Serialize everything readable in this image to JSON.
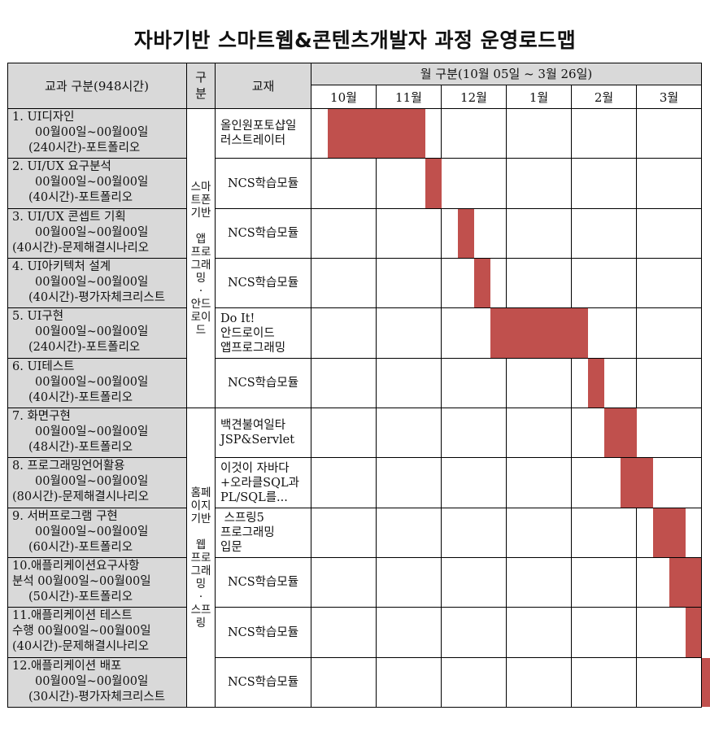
{
  "title": "자바기반 스마트웹&콘텐츠개발자 과정 운영로드맵",
  "header": {
    "course_col": "교과 구분(948시간)",
    "category_col": "구\n분",
    "material_col": "교재",
    "months_title": "월 구분(10월 05일 ~ 3월 26일)",
    "months": [
      "10월",
      "11월",
      "12월",
      "1월",
      "2월",
      "3월"
    ]
  },
  "categories": [
    {
      "label": "스마\n트폰\n기반\n\n앱\n프로\n그래\n밍\n·\n안드\n로이\n드"
    },
    {
      "label": "홈페\n이지\n기반\n\n웹\n프로\n그래\n밍\n·\n스프\n링"
    }
  ],
  "rows": [
    {
      "line1": "1. UI디자인",
      "line2": "00월00일~00월00일",
      "line3": "(240시간)-포트폴리오",
      "material": "올인원포토샵일\n러스트레이터",
      "start": 0,
      "end": 1.5
    },
    {
      "line1": "2. UI/UX 요구분석",
      "line2": "00월00일~00월00일",
      "line3": "(40시간)-포트폴리오",
      "material": "NCS학습모듈",
      "start": 1.5,
      "end": 1.75
    },
    {
      "line1": "3. UI/UX 콘셉트 기획",
      "line2": "00월00일~00월00일",
      "line3": "(40시간)-문제해결시나리오",
      "material": "NCS학습모듈",
      "start": 2.0,
      "end": 2.25
    },
    {
      "line1": "4. UI아키텍처 설계",
      "line2": "00월00일~00월00일",
      "line3": "(40시간)-평가자체크리스트",
      "material": "NCS학습모듈",
      "start": 2.25,
      "end": 2.5
    },
    {
      "line1": "5. UI구현",
      "line2": "00월00일~00월00일",
      "line3": "(240시간)-포트폴리오",
      "material": "Do It!\n안드로이드\n앱프로그래밍",
      "start": 2.5,
      "end": 4.0
    },
    {
      "line1": "6. UI테스트",
      "line2": "00월00일~00월00일",
      "line3": "(40시간)-포트폴리오",
      "material": "NCS학습모듈",
      "start": 4.0,
      "end": 4.25
    },
    {
      "line1": "7. 화면구현",
      "line2": "00월00일~00월00일",
      "line3": "(48시간)-포트폴리오",
      "material": "백견불여일타\nJSP&Servlet",
      "start": 4.25,
      "end": 4.75
    },
    {
      "line1": "8. 프로그래밍언어활용",
      "line2": "00월00일~00월00일",
      "line3": "(80시간)-문제해결시나리오",
      "material": "이것이 자바다\n+오라클SQL과\nPL/SQL를...",
      "start": 4.5,
      "end": 5.0
    },
    {
      "line1": "9. 서버프로그램 구현",
      "line2": "00월00일~00월00일",
      "line3": "(60시간)-포트폴리오",
      "material": " 스프링5\n프로그래밍\n입문",
      "start": 5.0,
      "end": 5.5
    },
    {
      "line1": "10.애플리케이션요구사항",
      "line2": "분석 00월00일~00월00일",
      "line3": "(50시간)-포트폴리오",
      "material": "NCS학습모듈",
      "start": 5.25,
      "end": 5.75
    },
    {
      "line1": "11.애플리케이션 테스트",
      "line2": "수행 00월00일~00월00일",
      "line3": "(40시간)-문제해결시나리오",
      "material": "NCS학습모듈",
      "start": 5.5,
      "end": 5.75
    },
    {
      "line1": "12.애플리케이션 배포",
      "line2": "00월00일~00월00일",
      "line3": "(30시간)-평가자체크리스트",
      "material": "NCS학습모듈",
      "start": 5.75,
      "end": 6.0
    }
  ],
  "colors": {
    "bar": "#c0504d",
    "shaded": "#d9d9d9",
    "grid": "#000000"
  }
}
